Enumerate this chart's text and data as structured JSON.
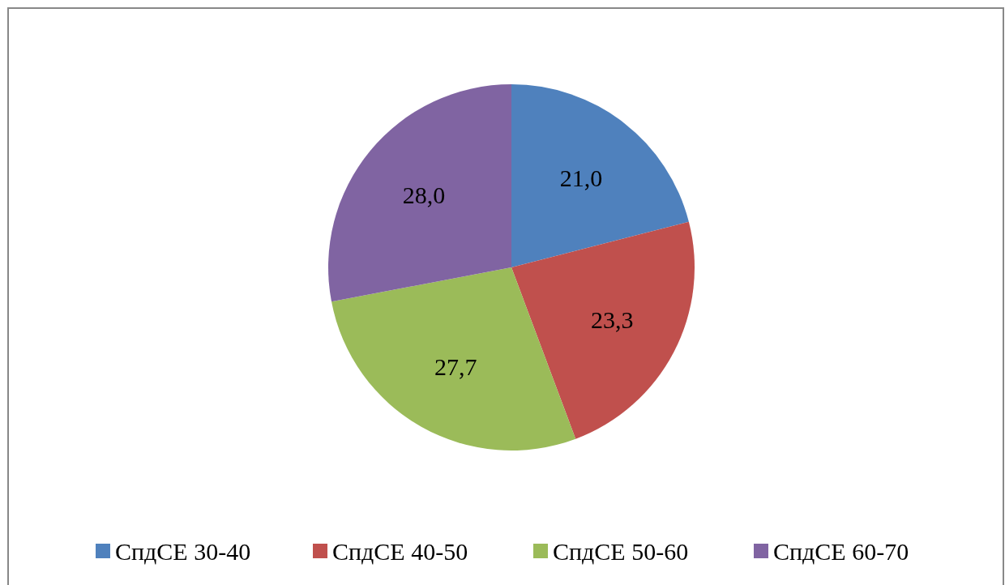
{
  "chart_data": {
    "type": "pie",
    "categories": [
      "СпдСЕ 30-40",
      "СпдСЕ 40-50",
      "СпдСЕ 50-60",
      "СпдСЕ 60-70"
    ],
    "values": [
      21.0,
      23.3,
      27.7,
      28.0
    ],
    "value_labels": [
      "21,0",
      "23,3",
      "27,7",
      "28,0"
    ],
    "colors": [
      "#4f81bd",
      "#c0504d",
      "#9bbb59",
      "#8064a2"
    ],
    "legend": "bottom"
  }
}
